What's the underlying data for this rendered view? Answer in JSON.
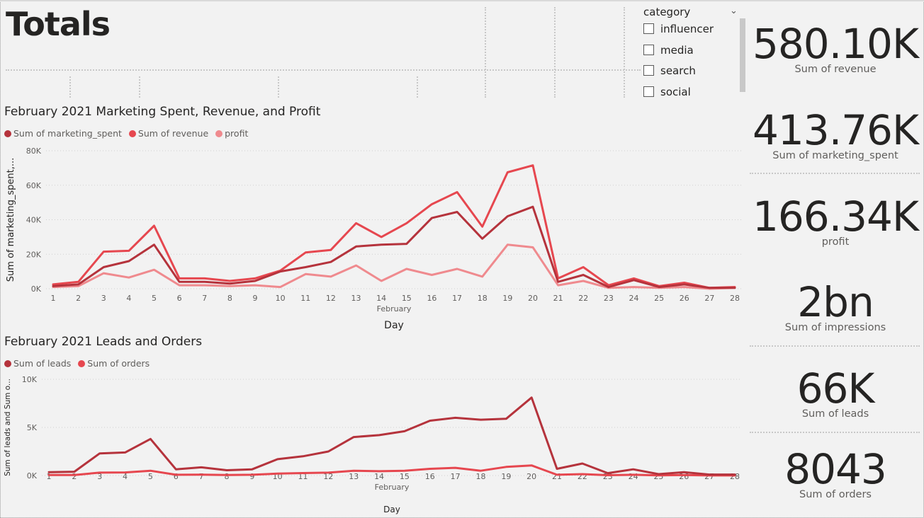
{
  "page": {
    "title": "Totals"
  },
  "slicer": {
    "header": "category",
    "items": [
      {
        "label": "influencer"
      },
      {
        "label": "media"
      },
      {
        "label": "search"
      },
      {
        "label": "social"
      }
    ]
  },
  "kpis": [
    {
      "value": "580.10K",
      "label": "Sum of revenue"
    },
    {
      "value": "413.76K",
      "label": "Sum of marketing_spent"
    },
    {
      "value": "166.34K",
      "label": "profit"
    },
    {
      "value": "2bn",
      "label": "Sum of impressions"
    },
    {
      "value": "66K",
      "label": "Sum of leads"
    },
    {
      "value": "8043",
      "label": "Sum of orders"
    }
  ],
  "colors": {
    "dark_red": "#b5333c",
    "red": "#e6474f",
    "pink": "#ef8a8e"
  },
  "chart_data": [
    {
      "type": "line",
      "title": "February 2021 Marketing Spent, Revenue, and Profit",
      "xlabel": "Day",
      "xsublabel": "February",
      "ylabel": "Sum of marketing_spent,...",
      "ylim": [
        0,
        80000
      ],
      "yticks": [
        0,
        20000,
        40000,
        60000,
        80000
      ],
      "ytick_labels": [
        "0K",
        "20K",
        "40K",
        "60K",
        "80K"
      ],
      "x": [
        1,
        2,
        3,
        4,
        5,
        6,
        7,
        8,
        9,
        10,
        11,
        12,
        13,
        14,
        15,
        16,
        17,
        18,
        19,
        20,
        21,
        22,
        23,
        24,
        25,
        26,
        27,
        28
      ],
      "x_labels": [
        "1",
        "2",
        "3",
        "4",
        "5",
        "6",
        "7",
        "8",
        "9",
        "10",
        "11",
        "12",
        "13",
        "14",
        "15",
        "16",
        "17",
        "18",
        "19",
        "20",
        "21",
        "22",
        "23",
        "24",
        "25",
        "26",
        "27",
        "28"
      ],
      "legend": "top-left",
      "grid": true,
      "series": [
        {
          "name": "Sum of marketing_spent",
          "color": "#b5333c",
          "values": [
            1500,
            2500,
            12500,
            16000,
            25500,
            4000,
            4000,
            3000,
            4500,
            10000,
            12500,
            15500,
            24500,
            25500,
            26000,
            41000,
            44500,
            29000,
            42000,
            47500,
            4000,
            8000,
            1000,
            5000,
            1000,
            2500,
            500,
            500
          ]
        },
        {
          "name": "Sum of revenue",
          "color": "#e6474f",
          "values": [
            2500,
            4000,
            21500,
            22000,
            36500,
            6000,
            6000,
            4500,
            6000,
            10500,
            21000,
            22500,
            38000,
            30000,
            38000,
            49000,
            56000,
            36000,
            67500,
            71500,
            6000,
            12500,
            2000,
            6000,
            1500,
            3500,
            500,
            1000
          ]
        },
        {
          "name": "profit",
          "color": "#ef8a8e",
          "values": [
            1000,
            1500,
            9000,
            6500,
            11000,
            2000,
            2000,
            1500,
            2000,
            1000,
            8500,
            7000,
            13500,
            4500,
            11500,
            8000,
            11500,
            7000,
            25500,
            24000,
            2000,
            4500,
            500,
            1000,
            500,
            1000,
            0,
            500
          ]
        }
      ]
    },
    {
      "type": "line",
      "title": "February 2021 Leads and Orders",
      "xlabel": "Day",
      "xsublabel": "February",
      "ylabel": "Sum of leads and Sum o...",
      "ylim": [
        0,
        10000
      ],
      "yticks": [
        0,
        5000,
        10000
      ],
      "ytick_labels": [
        "0K",
        "5K",
        "10K"
      ],
      "x": [
        1,
        2,
        3,
        4,
        5,
        6,
        7,
        8,
        9,
        10,
        11,
        12,
        13,
        14,
        15,
        16,
        17,
        18,
        19,
        20,
        21,
        22,
        23,
        24,
        25,
        26,
        27,
        28
      ],
      "x_labels": [
        "1",
        "2",
        "3",
        "4",
        "5",
        "6",
        "7",
        "8",
        "9",
        "10",
        "11",
        "12",
        "13",
        "14",
        "15",
        "16",
        "17",
        "18",
        "19",
        "20",
        "21",
        "22",
        "23",
        "24",
        "25",
        "26",
        "27",
        "28"
      ],
      "legend": "top-left",
      "grid": true,
      "series": [
        {
          "name": "Sum of leads",
          "color": "#b5333c",
          "values": [
            350,
            400,
            2300,
            2400,
            3800,
            650,
            850,
            550,
            650,
            1700,
            2000,
            2500,
            4000,
            4200,
            4600,
            5700,
            6000,
            5800,
            5900,
            8100,
            700,
            1250,
            250,
            650,
            150,
            350,
            100,
            100
          ]
        },
        {
          "name": "Sum of orders",
          "color": "#e6474f",
          "values": [
            50,
            60,
            300,
            320,
            500,
            80,
            90,
            60,
            80,
            200,
            260,
            300,
            500,
            450,
            500,
            700,
            800,
            500,
            900,
            1050,
            80,
            150,
            40,
            80,
            20,
            50,
            10,
            10
          ]
        }
      ]
    }
  ]
}
